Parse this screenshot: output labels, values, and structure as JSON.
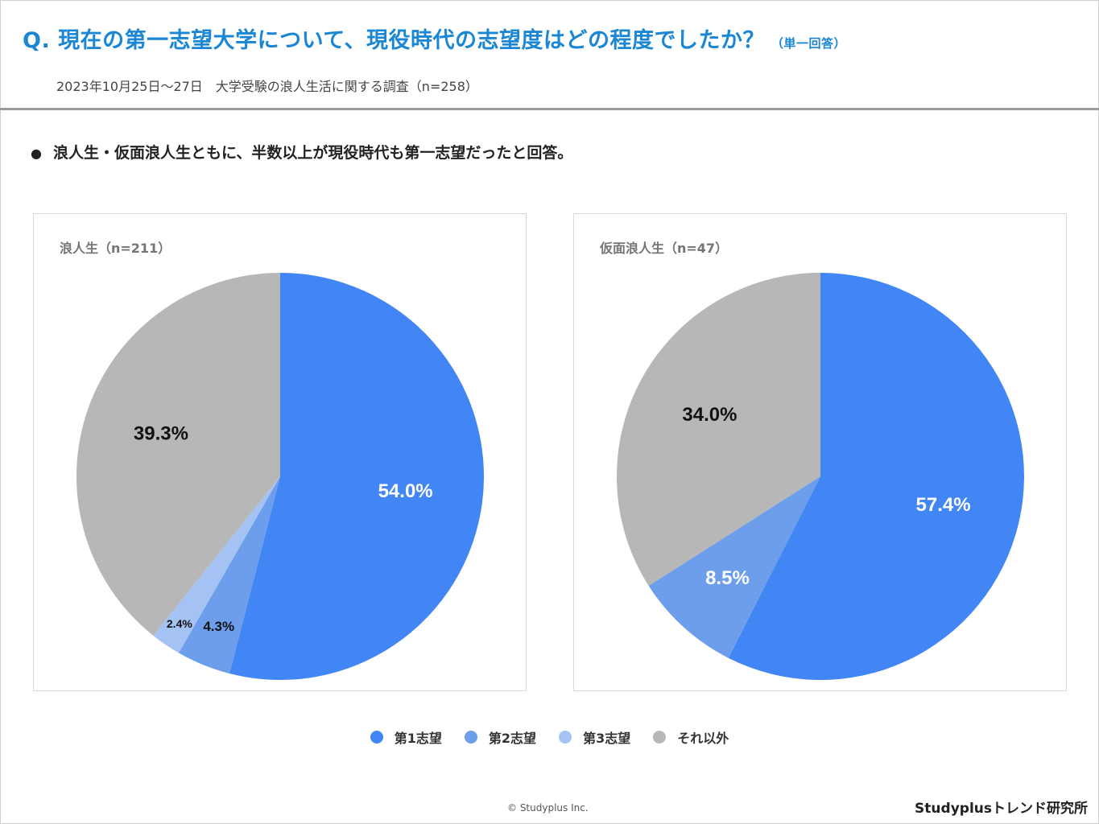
{
  "header": {
    "question": "Q. 現在の第一志望大学について、現役時代の志望度はどの程度でしたか？",
    "question_note": "（単一回答）",
    "survey": "2023年10月25日〜27日　大学受験の浪人生活に関する調査（n=258）"
  },
  "summary": {
    "bullet": "●",
    "text": "浪人生・仮面浪人生ともに、半数以上が現役時代も第一志望だったと回答。"
  },
  "colors": {
    "first": "#4285f4",
    "second": "#6d9eeb",
    "third": "#a4c2f4",
    "other": "#b7b7b7",
    "title": "#1a86d4"
  },
  "chart_data": [
    {
      "type": "pie",
      "title": "浪人生（n=211）",
      "series": [
        {
          "name": "第1志望",
          "value": 54.0,
          "label": "54.0%"
        },
        {
          "name": "第2志望",
          "value": 4.3,
          "label": "4.3%"
        },
        {
          "name": "第3志望",
          "value": 2.4,
          "label": "2.4%"
        },
        {
          "name": "それ以外",
          "value": 39.3,
          "label": "39.3%"
        }
      ]
    },
    {
      "type": "pie",
      "title": "仮面浪人生（n=47）",
      "series": [
        {
          "name": "第1志望",
          "value": 57.4,
          "label": "57.4%"
        },
        {
          "name": "第2志望",
          "value": 8.5,
          "label": "8.5%"
        },
        {
          "name": "第3志望",
          "value": 0.0,
          "label": ""
        },
        {
          "name": "それ以外",
          "value": 34.0,
          "label": "34.0%"
        }
      ]
    }
  ],
  "legend": [
    "第1志望",
    "第2志望",
    "第3志望",
    "それ以外"
  ],
  "footer": {
    "copyright": "© Studyplus Inc.",
    "brand": "Studyplusトレンド研究所"
  }
}
